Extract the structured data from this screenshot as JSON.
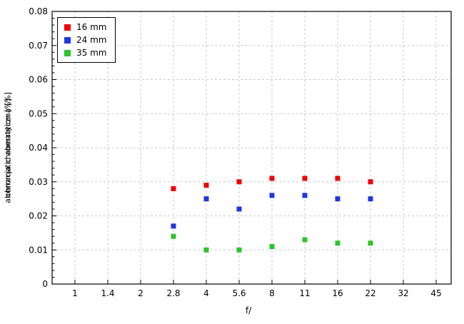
{
  "chart_data": {
    "type": "scatter",
    "title": "",
    "xlabel": "f/",
    "ylabel_overlap": [
      "aberracja chromatyczna [%]",
      "chromatic aberration [%]"
    ],
    "x_scale": "log (f-stop steps)",
    "x_ticks": [
      "1",
      "1.4",
      "2",
      "2.8",
      "4",
      "5.6",
      "8",
      "11",
      "16",
      "22",
      "32",
      "45"
    ],
    "y_ticks": [
      "0",
      "0.01",
      "0.02",
      "0.03",
      "0.04",
      "0.05",
      "0.06",
      "0.07",
      "0.08"
    ],
    "ylim": [
      0,
      0.08
    ],
    "y_minor_step": 0.002,
    "grid": true,
    "legend_position": "top-left",
    "marker": "square",
    "series": [
      {
        "name": "16 mm",
        "color": "#ee0000",
        "x": [
          2.8,
          4,
          5.6,
          8,
          11,
          16,
          22
        ],
        "y": [
          0.028,
          0.029,
          0.03,
          0.031,
          0.031,
          0.031,
          0.03
        ]
      },
      {
        "name": "24 mm",
        "color": "#2135e0",
        "x": [
          2.8,
          4,
          5.6,
          8,
          11,
          16,
          22
        ],
        "y": [
          0.017,
          0.025,
          0.022,
          0.026,
          0.026,
          0.025,
          0.025
        ]
      },
      {
        "name": "35 mm",
        "color": "#2cc52c",
        "x": [
          2.8,
          4,
          5.6,
          8,
          11,
          16,
          22
        ],
        "y": [
          0.014,
          0.01,
          0.01,
          0.011,
          0.013,
          0.012,
          0.012
        ]
      }
    ]
  }
}
